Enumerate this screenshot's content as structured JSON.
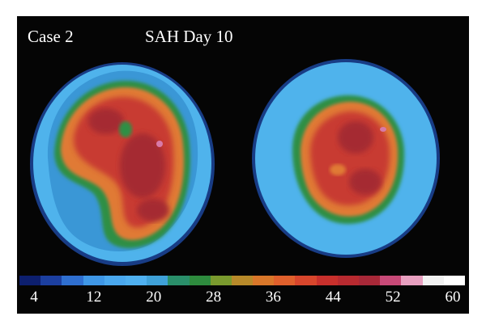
{
  "image": {
    "case_label": "Case 2",
    "condition_label": "SAH Day 10"
  },
  "colorbar": {
    "ticks": [
      "4",
      "12",
      "20",
      "28",
      "36",
      "44",
      "52",
      "60"
    ],
    "colors": [
      "#0d1f6e",
      "#1c3fa0",
      "#2f6fd0",
      "#3f97e6",
      "#4aa8ee",
      "#4fb0f0",
      "#3fa1d8",
      "#2a8f6a",
      "#2e8b3e",
      "#7a9a2e",
      "#b88a2a",
      "#d9772a",
      "#e0602c",
      "#d8462c",
      "#c8302c",
      "#b82a30",
      "#a82838",
      "#c84a78",
      "#e8a0c0",
      "#f2f2f2",
      "#ffffff"
    ]
  },
  "scan_colors": {
    "outer_blue": "#4fb3ec",
    "mid_blue": "#3f9fd8",
    "dark_blue": "#2a6fc0",
    "green": "#2f8f45",
    "orange": "#e07a35",
    "red": "#c83a33",
    "dark_red": "#a52a30"
  }
}
